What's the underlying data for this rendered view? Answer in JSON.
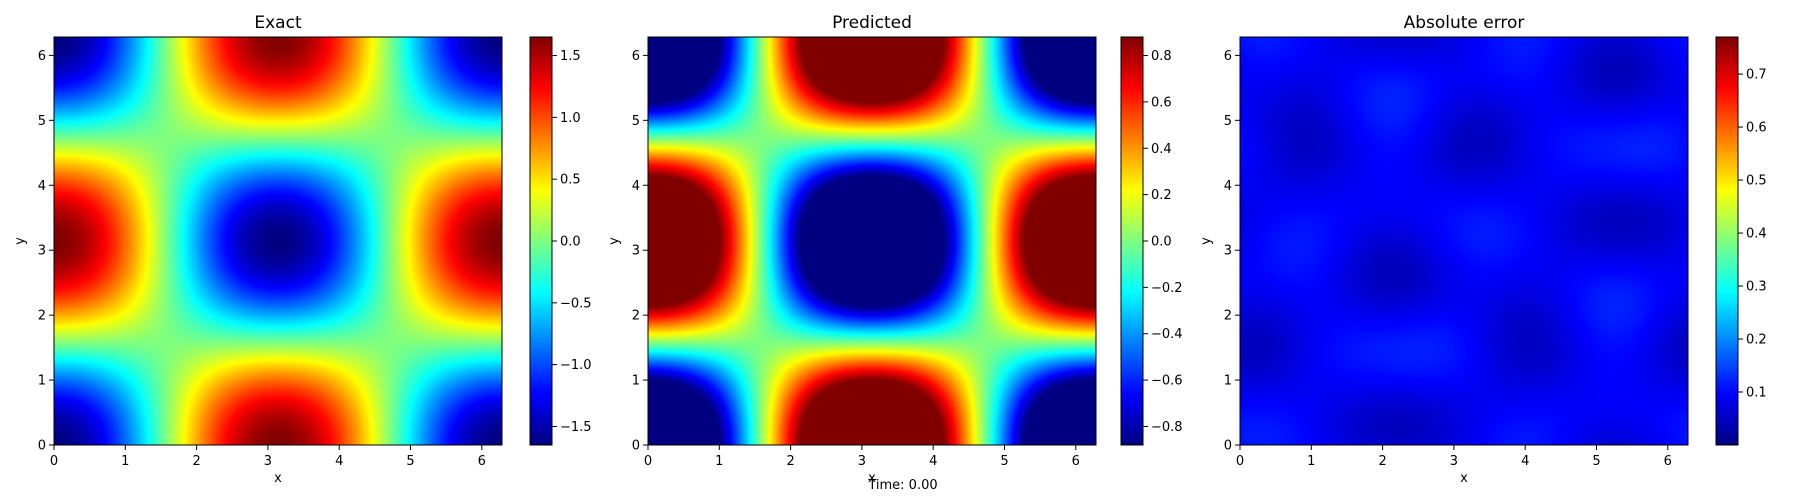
{
  "figure": {
    "footer_text": "Time: 0.00"
  },
  "colormap": {
    "name": "jet",
    "stops": [
      "#00007f",
      "#0000ff",
      "#007fff",
      "#00ffff",
      "#7fff7f",
      "#ffff00",
      "#ff7f00",
      "#ff0000",
      "#7f0000"
    ]
  },
  "chart_data": [
    {
      "type": "heatmap",
      "title": "Exact",
      "xlabel": "x",
      "ylabel": "y",
      "xlim": [
        0,
        6.2832
      ],
      "ylim": [
        0,
        6.2832
      ],
      "xticks": [
        0,
        1,
        2,
        3,
        4,
        5,
        6
      ],
      "yticks": [
        0,
        1,
        2,
        3,
        4,
        5,
        6
      ],
      "field": "u(x,y) = -1.65 · cos(x) · cos(y)",
      "field_amplitude": 1.65,
      "clim": [
        -1.65,
        1.65
      ],
      "colorbar_ticks": [
        -1.5,
        -1.0,
        -0.5,
        0.0,
        0.5,
        1.0,
        1.5
      ],
      "colorbar_tick_labels": [
        "−1.5",
        "−1.0",
        "−0.5",
        "0.0",
        "0.5",
        "1.0",
        "1.5"
      ]
    },
    {
      "type": "heatmap",
      "title": "Predicted",
      "xlabel": "x",
      "ylabel": "y",
      "xlim": [
        0,
        6.2832
      ],
      "ylim": [
        0,
        6.2832
      ],
      "xticks": [
        0,
        1,
        2,
        3,
        4,
        5,
        6
      ],
      "yticks": [
        0,
        1,
        2,
        3,
        4,
        5,
        6
      ],
      "field": "u(x,y) = -1.65 · cos(x) · cos(y), saturated at color limits",
      "field_amplitude": 1.65,
      "clim": [
        -0.88,
        0.88
      ],
      "colorbar_ticks": [
        -0.8,
        -0.6,
        -0.4,
        -0.2,
        0.0,
        0.2,
        0.4,
        0.6,
        0.8
      ],
      "colorbar_tick_labels": [
        "−0.8",
        "−0.6",
        "−0.4",
        "−0.2",
        "0.0",
        "0.2",
        "0.4",
        "0.6",
        "0.8"
      ]
    },
    {
      "type": "heatmap",
      "title": "Absolute error",
      "xlabel": "x",
      "ylabel": "y",
      "xlim": [
        0,
        6.2832
      ],
      "ylim": [
        0,
        6.2832
      ],
      "xticks": [
        0,
        1,
        2,
        3,
        4,
        5,
        6
      ],
      "yticks": [
        0,
        1,
        2,
        3,
        4,
        5,
        6
      ],
      "field": "small low-amplitude error, ~0.05-0.14 everywhere",
      "clim": [
        0.0,
        0.77
      ],
      "colorbar_ticks": [
        0.1,
        0.2,
        0.3,
        0.4,
        0.5,
        0.6,
        0.7
      ],
      "colorbar_tick_labels": [
        "0.1",
        "0.2",
        "0.3",
        "0.4",
        "0.5",
        "0.6",
        "0.7"
      ]
    }
  ]
}
